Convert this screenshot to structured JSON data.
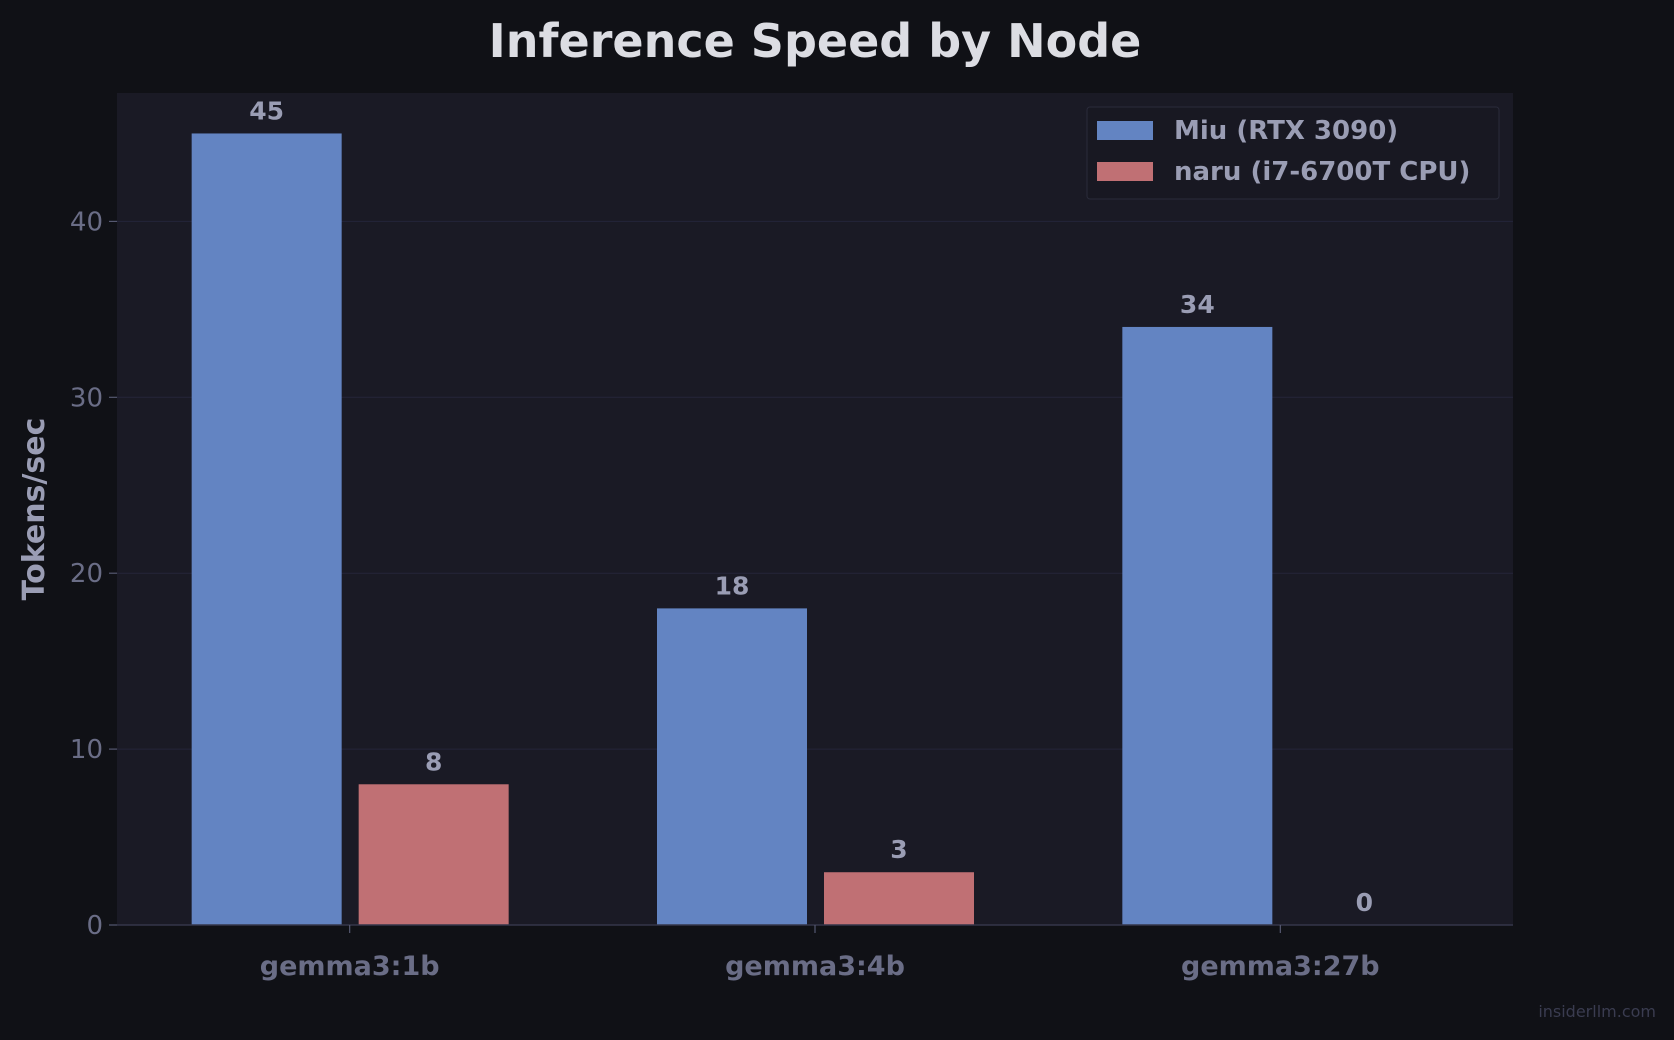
{
  "chart_data": {
    "type": "bar",
    "title": "Inference Speed by Node",
    "xlabel": "",
    "ylabel": "Tokens/sec",
    "categories": [
      "gemma3:1b",
      "gemma3:4b",
      "gemma3:27b"
    ],
    "series": [
      {
        "name": "Miu (RTX 3090)",
        "values": [
          45,
          18,
          34
        ],
        "color": "#6384c2"
      },
      {
        "name": "naru (i7-6700T CPU)",
        "values": [
          8,
          3,
          0
        ],
        "color": "#c07074"
      }
    ],
    "ylim": [
      0,
      47.3
    ],
    "yticks": [
      0,
      10,
      20,
      30,
      40
    ],
    "grid": true,
    "legend": "top-right",
    "colors": {
      "background": "#101116",
      "plot_background": "#1a1a25",
      "title": "#dcdde3",
      "tick_text": "#6a6d86",
      "label_text": "#9a9db4"
    }
  },
  "watermark": "insiderllm.com"
}
